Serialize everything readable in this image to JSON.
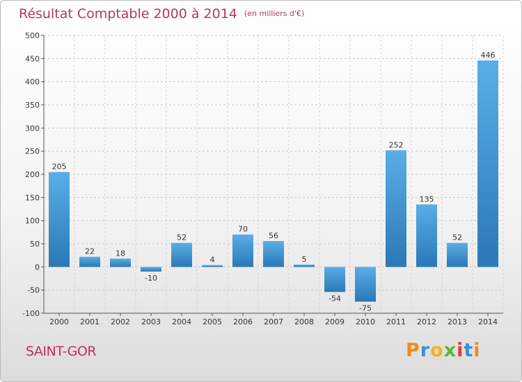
{
  "header": {
    "title": "Résultat Comptable 2000 à 2014",
    "unit": "(en milliers d'€)"
  },
  "footer": {
    "commune": "SAINT-GOR",
    "brand": "Proxiti"
  },
  "colors": {
    "title": "#b03a5b",
    "bar_light": "#5aaee6",
    "bar_dark": "#2a78b5",
    "brand_letters": [
      "#f28a1c",
      "#3b8fd6",
      "#f2b21c",
      "#5cb832",
      "#e03b3b",
      "#3b8fd6",
      "#f28a1c"
    ]
  },
  "chart_data": {
    "type": "bar",
    "title": "Résultat Comptable 2000 à 2014",
    "subtitle": "(en milliers d'€)",
    "categories": [
      "2000",
      "2001",
      "2002",
      "2003",
      "2004",
      "2005",
      "2006",
      "2007",
      "2008",
      "2009",
      "2010",
      "2011",
      "2012",
      "2013",
      "2014"
    ],
    "values": [
      205,
      22,
      18,
      -10,
      52,
      4,
      70,
      56,
      5,
      -54,
      -75,
      252,
      135,
      52,
      446
    ],
    "ylim": [
      -100,
      500
    ],
    "yticks": [
      -100,
      -50,
      0,
      50,
      100,
      150,
      200,
      250,
      300,
      350,
      400,
      450,
      500
    ],
    "grid": true,
    "xlabel": "",
    "ylabel": ""
  }
}
